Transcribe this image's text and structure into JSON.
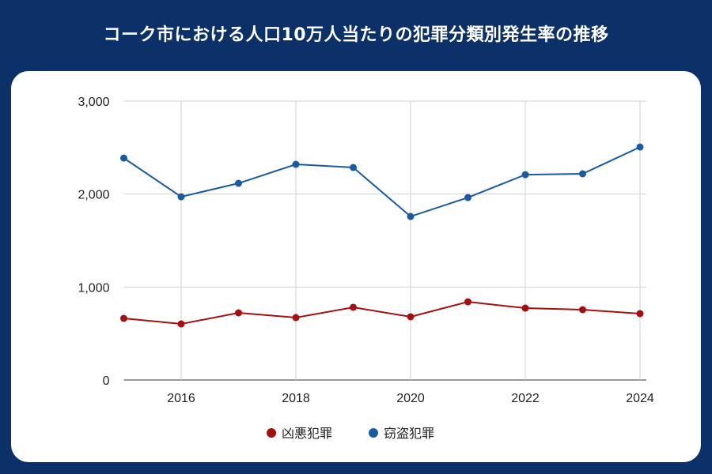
{
  "title": "コーク市における人口10万人当たりの犯罪分類別発生率の推移",
  "chart_data": {
    "type": "line",
    "title": "コーク市における人口10万人当たりの犯罪分類別発生率の推移",
    "xlabel": "",
    "ylabel": "",
    "x": [
      2015,
      2016,
      2017,
      2018,
      2019,
      2020,
      2021,
      2022,
      2023,
      2024
    ],
    "xticks": [
      "2016",
      "2018",
      "2020",
      "2022",
      "2024"
    ],
    "yticks": [
      "0",
      "1,000",
      "2,000",
      "3,000"
    ],
    "xlim": [
      2015,
      2024
    ],
    "ylim": [
      0,
      3000
    ],
    "grid": true,
    "legend": "bottom",
    "series": [
      {
        "name": "凶悪犯罪",
        "color": "#a50f0f",
        "values": [
          663,
          603,
          722,
          671,
          782,
          680,
          841,
          773,
          756,
          714
        ]
      },
      {
        "name": "窃盗犯罪",
        "color": "#1a5aa0",
        "values": [
          2387,
          1971,
          2116,
          2320,
          2286,
          1759,
          1963,
          2209,
          2218,
          2506
        ]
      }
    ]
  }
}
